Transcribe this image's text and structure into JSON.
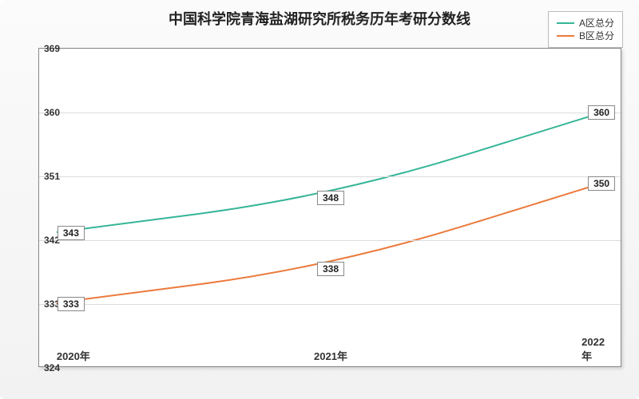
{
  "title": "中国科学院青海盐湖研究所税务历年考研分数线",
  "chart": {
    "type": "line",
    "background_color": "#ffffff",
    "outer_bg_gradient": [
      "#fbfbfb",
      "#f2f2f2"
    ],
    "border_color": "#888888",
    "grid_color": "#dcdcdc",
    "title_fontsize": 18,
    "label_fontsize": 12,
    "xlim": [
      2020,
      2022
    ],
    "ylim": [
      324,
      369
    ],
    "ytick_step": 9,
    "yticks": [
      324,
      333,
      342,
      351,
      360,
      369
    ],
    "x_categories": [
      "2020年",
      "2021年",
      "2022年"
    ],
    "series": [
      {
        "name": "A区总分",
        "color": "#35b597",
        "line_width": 2,
        "values": [
          343,
          348,
          360
        ],
        "curve": "smooth"
      },
      {
        "name": "B区总分",
        "color": "#eb7a3c",
        "line_width": 2,
        "values": [
          333,
          338,
          350
        ],
        "curve": "smooth"
      }
    ],
    "legend": {
      "position": "top-right",
      "bg": "#ffffff",
      "border": "#bbbbbb"
    },
    "point_label_style": {
      "bg": "#ffffff",
      "border": "#888888",
      "fontsize": 12
    }
  }
}
